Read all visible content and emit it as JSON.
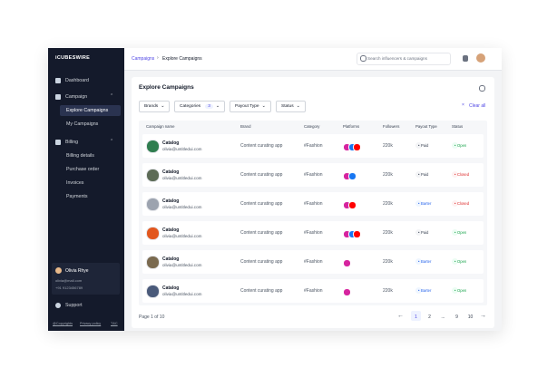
{
  "sidebar": {
    "brand": "iCUBESWIRE",
    "nav": [
      {
        "label": "Dashboard"
      },
      {
        "label": "Campaign",
        "children": [
          "Explore Campaigns",
          "My Campaigns"
        ]
      },
      {
        "label": "Billing",
        "children": [
          "Billing details",
          "Purchase order",
          "Invoices",
          "Payments"
        ]
      }
    ],
    "user": {
      "name": "Olivia Rhye",
      "email": "olivia@mail.com",
      "phone": "+91 9123456789"
    },
    "support": "Support",
    "footer": [
      "@Copyrights",
      "Privacy policy",
      "T&C"
    ]
  },
  "topbar": {
    "breadcrumb": [
      "Campaigns",
      "Explore Campaigns"
    ],
    "search_placeholder": "Search influencers & campaigns"
  },
  "content": {
    "title": "Explore Campaigns",
    "filters": [
      {
        "label": "Brands"
      },
      {
        "label": "Categories",
        "badge": 3
      },
      {
        "label": "Payout Type"
      },
      {
        "label": "Status"
      }
    ],
    "clear": "Clear all"
  },
  "table": {
    "columns": [
      "Campaign name",
      "Brand",
      "Category",
      "Platforms",
      "Followers",
      "Payout Type",
      "Status"
    ],
    "rows": [
      {
        "name": "Catalog",
        "email": "olivia@untitledui.com",
        "brand": "Content curating app",
        "category": "#Fashion",
        "followers": "220k",
        "payout": "Paid",
        "status": "Open"
      },
      {
        "name": "Catalog",
        "email": "olivia@untitledui.com",
        "brand": "Content curating app",
        "category": "#Fashion",
        "followers": "220k",
        "payout": "Paid",
        "status": "Closed"
      },
      {
        "name": "Catalog",
        "email": "olivia@untitledui.com",
        "brand": "Content curating app",
        "category": "#Fashion",
        "followers": "220k",
        "payout": "Barter",
        "status": "Closed"
      },
      {
        "name": "Catalog",
        "email": "olivia@untitledui.com",
        "brand": "Content curating app",
        "category": "#Fashion",
        "followers": "220k",
        "payout": "Paid",
        "status": "Open"
      },
      {
        "name": "Catalog",
        "email": "olivia@untitledui.com",
        "brand": "Content curating app",
        "category": "#Fashion",
        "followers": "220k",
        "payout": "Barter",
        "status": "Open"
      },
      {
        "name": "Catalog",
        "email": "olivia@untitledui.com",
        "brand": "Content curating app",
        "category": "#Fashion",
        "followers": "220k",
        "payout": "Barter",
        "status": "Open"
      }
    ]
  },
  "pagination": {
    "summary": "Page 1 of 10",
    "pages": [
      "1",
      "2",
      "...",
      "9",
      "10"
    ]
  }
}
